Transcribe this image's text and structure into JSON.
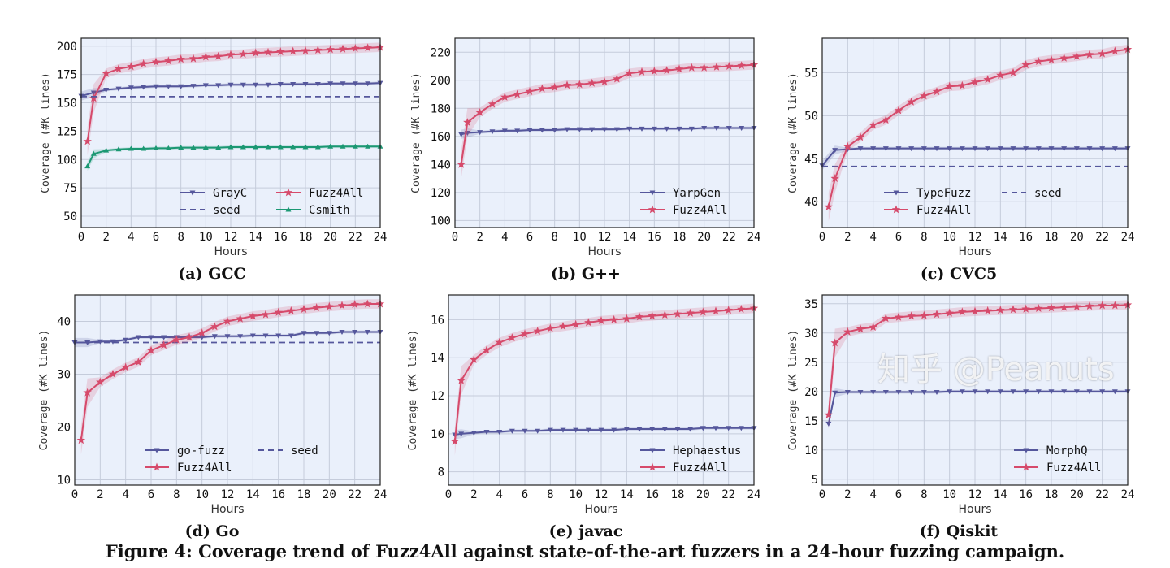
{
  "figure_caption": "Figure 4: Coverage trend of Fuzz4All against state-of-the-art fuzzers in a 24-hour fuzzing campaign.",
  "watermark": "知乎 @Peanuts",
  "colors": {
    "blue": "#55579c",
    "red": "#d64a6b",
    "green": "#1b9873",
    "plot_bg": "#eaf0fb",
    "grid": "#c5ccdb"
  },
  "chart_data": [
    {
      "type": "line",
      "caption": "(a) GCC",
      "xlabel": "Hours",
      "ylabel": "Coverage (#K lines)",
      "xlim": [
        0,
        24
      ],
      "ylim": [
        40,
        207
      ],
      "xticks": [
        0,
        2,
        4,
        6,
        8,
        10,
        12,
        14,
        16,
        18,
        20,
        22,
        24
      ],
      "yticks": [
        50,
        75,
        100,
        125,
        150,
        175,
        200
      ],
      "grid": true,
      "legend": "lower-right",
      "legend_cols": 2,
      "series": [
        {
          "name": "GrayC",
          "color": "blue",
          "marker": "down-triangle",
          "x": [
            0,
            1,
            2,
            3,
            4,
            5,
            6,
            7,
            8,
            9,
            10,
            11,
            12,
            13,
            14,
            15,
            16,
            17,
            18,
            19,
            20,
            21,
            22,
            23,
            24
          ],
          "values": [
            156,
            159,
            161.5,
            162.5,
            163.5,
            164,
            164.5,
            164.5,
            164.5,
            165,
            165.5,
            165.5,
            166,
            166,
            166,
            166,
            166.5,
            166.5,
            166.5,
            166.5,
            167,
            167,
            167,
            167,
            167.5
          ]
        },
        {
          "name": "Fuzz4All",
          "color": "red",
          "marker": "star",
          "x": [
            0.5,
            1,
            2,
            3,
            4,
            5,
            6,
            7,
            8,
            9,
            10,
            11,
            12,
            13,
            14,
            15,
            16,
            17,
            18,
            19,
            20,
            21,
            22,
            23,
            24
          ],
          "values": [
            116,
            154,
            176,
            180,
            182,
            184.5,
            186,
            187,
            188.5,
            189,
            190.5,
            191,
            192.5,
            193,
            194,
            194.5,
            195,
            195.5,
            196,
            196.5,
            197,
            197.5,
            198,
            198.5,
            199
          ]
        },
        {
          "name": "seed",
          "color": "blue",
          "dashed": true,
          "x": [
            0,
            24
          ],
          "values": [
            155.5,
            155.5
          ]
        },
        {
          "name": "Csmith",
          "color": "green",
          "marker": "up-triangle",
          "x": [
            0.5,
            1,
            2,
            3,
            4,
            5,
            6,
            7,
            8,
            9,
            10,
            11,
            12,
            13,
            14,
            15,
            16,
            17,
            18,
            19,
            20,
            21,
            22,
            23,
            24
          ],
          "values": [
            94,
            105,
            108,
            109,
            109.5,
            109.5,
            110,
            110,
            110.5,
            110.5,
            110.5,
            110.5,
            111,
            111,
            111,
            111,
            111,
            111,
            111,
            111,
            111.5,
            111.5,
            111.5,
            111.5,
            111.5
          ]
        }
      ],
      "legend_order": [
        "GrayC",
        "Fuzz4All",
        "seed",
        "Csmith"
      ]
    },
    {
      "type": "line",
      "caption": "(b) G++",
      "xlabel": "Hours",
      "ylabel": "Coverage (#K lines)",
      "xlim": [
        0,
        24
      ],
      "ylim": [
        95,
        230
      ],
      "xticks": [
        0,
        2,
        4,
        6,
        8,
        10,
        12,
        14,
        16,
        18,
        20,
        22,
        24
      ],
      "yticks": [
        100,
        120,
        140,
        160,
        180,
        200,
        220
      ],
      "grid": true,
      "legend": "lower-right",
      "legend_cols": 1,
      "series": [
        {
          "name": "YarpGen",
          "color": "blue",
          "marker": "down-triangle",
          "x": [
            0.5,
            1,
            2,
            3,
            4,
            5,
            6,
            7,
            8,
            9,
            10,
            11,
            12,
            13,
            14,
            15,
            16,
            17,
            18,
            19,
            20,
            21,
            22,
            23,
            24
          ],
          "values": [
            161.5,
            162.5,
            163,
            163.5,
            164,
            164,
            164.5,
            164.5,
            164.5,
            165,
            165,
            165,
            165,
            165,
            165.5,
            165.5,
            165.5,
            165.5,
            165.5,
            165.5,
            166,
            166,
            166,
            166,
            166
          ]
        },
        {
          "name": "Fuzz4All",
          "color": "red",
          "marker": "star",
          "x": [
            0.5,
            1,
            2,
            3,
            4,
            5,
            6,
            7,
            8,
            9,
            10,
            11,
            12,
            13,
            14,
            15,
            16,
            17,
            18,
            19,
            20,
            21,
            22,
            23,
            24
          ],
          "values": [
            140,
            170,
            177,
            183,
            188,
            190,
            192,
            194,
            195,
            196.5,
            197,
            198,
            199,
            201,
            205,
            206,
            206.5,
            207,
            208,
            209,
            209,
            209.5,
            210,
            210.5,
            211
          ]
        }
      ],
      "legend_order": [
        "YarpGen",
        "Fuzz4All"
      ]
    },
    {
      "type": "line",
      "caption": "(c) CVC5",
      "xlabel": "Hours",
      "ylabel": "Coverage (#K lines)",
      "xlim": [
        0,
        24
      ],
      "ylim": [
        37,
        59
      ],
      "xticks": [
        0,
        2,
        4,
        6,
        8,
        10,
        12,
        14,
        16,
        18,
        20,
        22,
        24
      ],
      "yticks": [
        40,
        45,
        50,
        55
      ],
      "grid": true,
      "legend": "lower-right",
      "legend_cols": 2,
      "series": [
        {
          "name": "TypeFuzz",
          "color": "blue",
          "marker": "down-triangle",
          "x": [
            0,
            1,
            2,
            3,
            4,
            5,
            6,
            7,
            8,
            9,
            10,
            11,
            12,
            13,
            14,
            15,
            16,
            17,
            18,
            19,
            20,
            21,
            22,
            23,
            24
          ],
          "values": [
            44.2,
            46,
            46.1,
            46.2,
            46.2,
            46.2,
            46.2,
            46.2,
            46.2,
            46.2,
            46.2,
            46.2,
            46.2,
            46.2,
            46.2,
            46.2,
            46.2,
            46.2,
            46.2,
            46.2,
            46.2,
            46.2,
            46.2,
            46.2,
            46.2
          ]
        },
        {
          "name": "seed",
          "color": "blue",
          "dashed": true,
          "x": [
            0,
            24
          ],
          "values": [
            44.1,
            44.1
          ]
        },
        {
          "name": "Fuzz4All",
          "color": "red",
          "marker": "star",
          "x": [
            0.5,
            1,
            2,
            3,
            4,
            5,
            6,
            7,
            8,
            9,
            10,
            11,
            12,
            13,
            14,
            15,
            16,
            17,
            18,
            19,
            20,
            21,
            22,
            23,
            24
          ],
          "values": [
            39.4,
            42.7,
            46.4,
            47.5,
            48.9,
            49.5,
            50.6,
            51.6,
            52.3,
            52.8,
            53.4,
            53.5,
            53.9,
            54.2,
            54.7,
            55,
            55.9,
            56.3,
            56.5,
            56.7,
            56.9,
            57.1,
            57.2,
            57.5,
            57.7
          ]
        }
      ],
      "legend_order": [
        "TypeFuzz",
        "seed",
        "Fuzz4All"
      ]
    },
    {
      "type": "line",
      "caption": "(d) Go",
      "xlabel": "Hours",
      "ylabel": "Coverage (#K lines)",
      "xlim": [
        0,
        24
      ],
      "ylim": [
        9,
        45
      ],
      "xticks": [
        0,
        2,
        4,
        6,
        8,
        10,
        12,
        14,
        16,
        18,
        20,
        22,
        24
      ],
      "yticks": [
        10,
        20,
        30,
        40
      ],
      "grid": true,
      "legend": "lower-right",
      "legend_cols": 2,
      "series": [
        {
          "name": "go-fuzz",
          "color": "blue",
          "marker": "down-triangle",
          "x": [
            0,
            1,
            2,
            3,
            4,
            5,
            6,
            7,
            8,
            9,
            10,
            11,
            12,
            13,
            14,
            15,
            16,
            17,
            18,
            19,
            20,
            21,
            22,
            23,
            24
          ],
          "values": [
            36,
            36,
            36.2,
            36.2,
            36.5,
            37,
            37,
            37,
            37,
            37,
            37,
            37.2,
            37.2,
            37.2,
            37.3,
            37.3,
            37.3,
            37.3,
            37.8,
            37.8,
            37.8,
            38,
            38,
            38,
            38
          ]
        },
        {
          "name": "seed",
          "color": "blue",
          "dashed": true,
          "x": [
            0,
            24
          ],
          "values": [
            36,
            36
          ]
        },
        {
          "name": "Fuzz4All",
          "color": "red",
          "marker": "star",
          "x": [
            0.5,
            1,
            2,
            3,
            4,
            5,
            6,
            7,
            8,
            9,
            10,
            11,
            12,
            13,
            14,
            15,
            16,
            17,
            18,
            19,
            20,
            21,
            22,
            23,
            24
          ],
          "values": [
            17.5,
            26.5,
            28.5,
            30,
            31.3,
            32.3,
            34.5,
            35.5,
            36.5,
            37,
            37.8,
            39,
            40,
            40.5,
            41,
            41.3,
            41.7,
            42,
            42.3,
            42.6,
            42.8,
            43,
            43.2,
            43.3,
            43.3
          ]
        }
      ],
      "legend_order": [
        "go-fuzz",
        "seed",
        "Fuzz4All"
      ]
    },
    {
      "type": "line",
      "caption": "(e) javac",
      "xlabel": "Hours",
      "ylabel": "Coverage (#K lines)",
      "xlim": [
        0,
        24
      ],
      "ylim": [
        7.3,
        17.3
      ],
      "xticks": [
        0,
        2,
        4,
        6,
        8,
        10,
        12,
        14,
        16,
        18,
        20,
        22,
        24
      ],
      "yticks": [
        8,
        10,
        12,
        14,
        16
      ],
      "grid": true,
      "legend": "lower-right",
      "legend_cols": 1,
      "series": [
        {
          "name": "Hephaestus",
          "color": "blue",
          "marker": "down-triangle",
          "x": [
            0.5,
            1,
            2,
            3,
            4,
            5,
            6,
            7,
            8,
            9,
            10,
            11,
            12,
            13,
            14,
            15,
            16,
            17,
            18,
            19,
            20,
            21,
            22,
            23,
            24
          ],
          "values": [
            9.95,
            10,
            10.05,
            10.1,
            10.1,
            10.15,
            10.15,
            10.15,
            10.2,
            10.2,
            10.2,
            10.2,
            10.2,
            10.2,
            10.25,
            10.25,
            10.25,
            10.25,
            10.25,
            10.25,
            10.3,
            10.3,
            10.3,
            10.3,
            10.3
          ]
        },
        {
          "name": "Fuzz4All",
          "color": "red",
          "marker": "star",
          "x": [
            0.5,
            1,
            2,
            3,
            4,
            5,
            6,
            7,
            8,
            9,
            10,
            11,
            12,
            13,
            14,
            15,
            16,
            17,
            18,
            19,
            20,
            21,
            22,
            23,
            24
          ],
          "values": [
            9.6,
            12.8,
            13.9,
            14.4,
            14.8,
            15.05,
            15.25,
            15.4,
            15.55,
            15.65,
            15.75,
            15.85,
            15.95,
            16,
            16.05,
            16.15,
            16.2,
            16.25,
            16.3,
            16.35,
            16.4,
            16.45,
            16.5,
            16.55,
            16.6
          ]
        }
      ],
      "legend_order": [
        "Hephaestus",
        "Fuzz4All"
      ]
    },
    {
      "type": "line",
      "caption": "(f) Qiskit",
      "xlabel": "Hours",
      "ylabel": "Coverage (#K lines)",
      "xlim": [
        0,
        24
      ],
      "ylim": [
        4,
        36.5
      ],
      "xticks": [
        0,
        2,
        4,
        6,
        8,
        10,
        12,
        14,
        16,
        18,
        20,
        22,
        24
      ],
      "yticks": [
        5,
        10,
        15,
        20,
        25,
        30,
        35
      ],
      "grid": true,
      "legend": "lower-right",
      "legend_cols": 1,
      "series": [
        {
          "name": "MorphQ",
          "color": "blue",
          "marker": "down-triangle",
          "x": [
            0.5,
            1,
            2,
            3,
            4,
            5,
            6,
            7,
            8,
            9,
            10,
            11,
            12,
            13,
            14,
            15,
            16,
            17,
            18,
            19,
            20,
            21,
            22,
            23,
            24
          ],
          "values": [
            14.5,
            19.8,
            19.9,
            19.9,
            19.9,
            19.9,
            19.9,
            19.9,
            19.9,
            19.9,
            20,
            20,
            20,
            20,
            20,
            20,
            20,
            20,
            20,
            20,
            20,
            20,
            20,
            20,
            20
          ]
        },
        {
          "name": "Fuzz4All",
          "color": "red",
          "marker": "star",
          "x": [
            0.5,
            1,
            2,
            3,
            4,
            5,
            6,
            7,
            8,
            9,
            10,
            11,
            12,
            13,
            14,
            15,
            16,
            17,
            18,
            19,
            20,
            21,
            22,
            23,
            24
          ],
          "values": [
            16,
            28.3,
            30.2,
            30.7,
            31,
            32.5,
            32.7,
            32.9,
            33,
            33.2,
            33.4,
            33.6,
            33.7,
            33.8,
            33.9,
            34,
            34.1,
            34.2,
            34.3,
            34.4,
            34.5,
            34.6,
            34.7,
            34.7,
            34.8
          ]
        }
      ],
      "legend_order": [
        "MorphQ",
        "Fuzz4All"
      ]
    }
  ]
}
